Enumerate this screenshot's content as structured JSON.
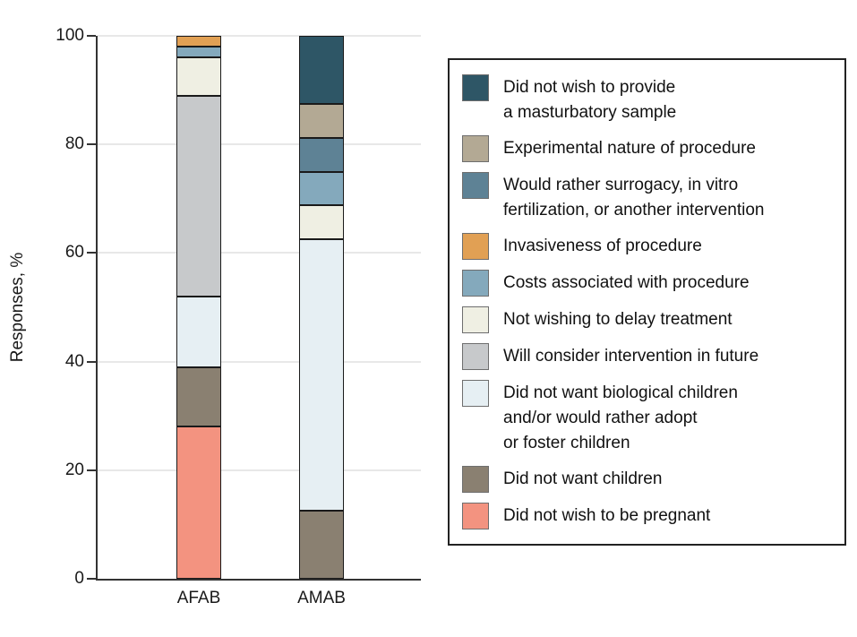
{
  "chart_data": {
    "type": "bar",
    "stacked": true,
    "title": "",
    "ylabel": "Responses, %",
    "categories": [
      "AFAB",
      "AMAB"
    ],
    "ylim": [
      0,
      100
    ],
    "yticks": [
      0,
      20,
      40,
      60,
      80,
      100
    ],
    "grid": "horizontal",
    "legend_position": "right",
    "series": [
      {
        "name": "Did not wish to be pregnant",
        "color": "#F39380",
        "values": [
          28,
          0
        ]
      },
      {
        "name": "Did not want children",
        "color": "#8A8071",
        "values": [
          11,
          12.5
        ]
      },
      {
        "name": "Did not want biological children and/or would rather adopt or foster children",
        "color": "#E6EFF3",
        "values": [
          13,
          50
        ]
      },
      {
        "name": "Will consider intervention in future",
        "color": "#C7C9CB",
        "values": [
          37,
          0
        ]
      },
      {
        "name": "Not wishing to delay treatment",
        "color": "#EFEFE3",
        "values": [
          7,
          6.25
        ]
      },
      {
        "name": "Costs associated with procedure",
        "color": "#84A9BC",
        "values": [
          2,
          6.25
        ]
      },
      {
        "name": "Invasiveness of procedure",
        "color": "#E1A054",
        "values": [
          2,
          0
        ]
      },
      {
        "name": "Would rather surrogacy, in vitro fertilization, or another intervention",
        "color": "#5E8295",
        "values": [
          0,
          6.25
        ]
      },
      {
        "name": "Experimental nature of procedure",
        "color": "#B3A994",
        "values": [
          0,
          6.25
        ]
      },
      {
        "name": "Did not wish to provide a masturbatory sample",
        "color": "#2E5666",
        "values": [
          0,
          12.5
        ]
      }
    ]
  },
  "axes": {
    "ylabel": "Responses, %",
    "ytick_labels": [
      "0",
      "20",
      "40",
      "60",
      "80",
      "100"
    ],
    "xtick_labels": [
      "AFAB",
      "AMAB"
    ]
  },
  "legend": {
    "items": [
      {
        "label": "Did not wish to provide\na masturbatory sample",
        "color": "#2E5666"
      },
      {
        "label": "Experimental nature of procedure",
        "color": "#B3A994"
      },
      {
        "label": "Would rather surrogacy, in vitro\nfertilization, or another intervention",
        "color": "#5E8295"
      },
      {
        "label": "Invasiveness of procedure",
        "color": "#E1A054"
      },
      {
        "label": "Costs associated with procedure",
        "color": "#84A9BC"
      },
      {
        "label": "Not wishing to delay treatment",
        "color": "#EFEFE3"
      },
      {
        "label": "Will consider intervention in future",
        "color": "#C7C9CB"
      },
      {
        "label": "Did not want biological children\nand/or would rather adopt\nor foster children",
        "color": "#E6EFF3"
      },
      {
        "label": "Did not want children",
        "color": "#8A8071"
      },
      {
        "label": "Did not wish to be pregnant",
        "color": "#F39380"
      }
    ]
  }
}
